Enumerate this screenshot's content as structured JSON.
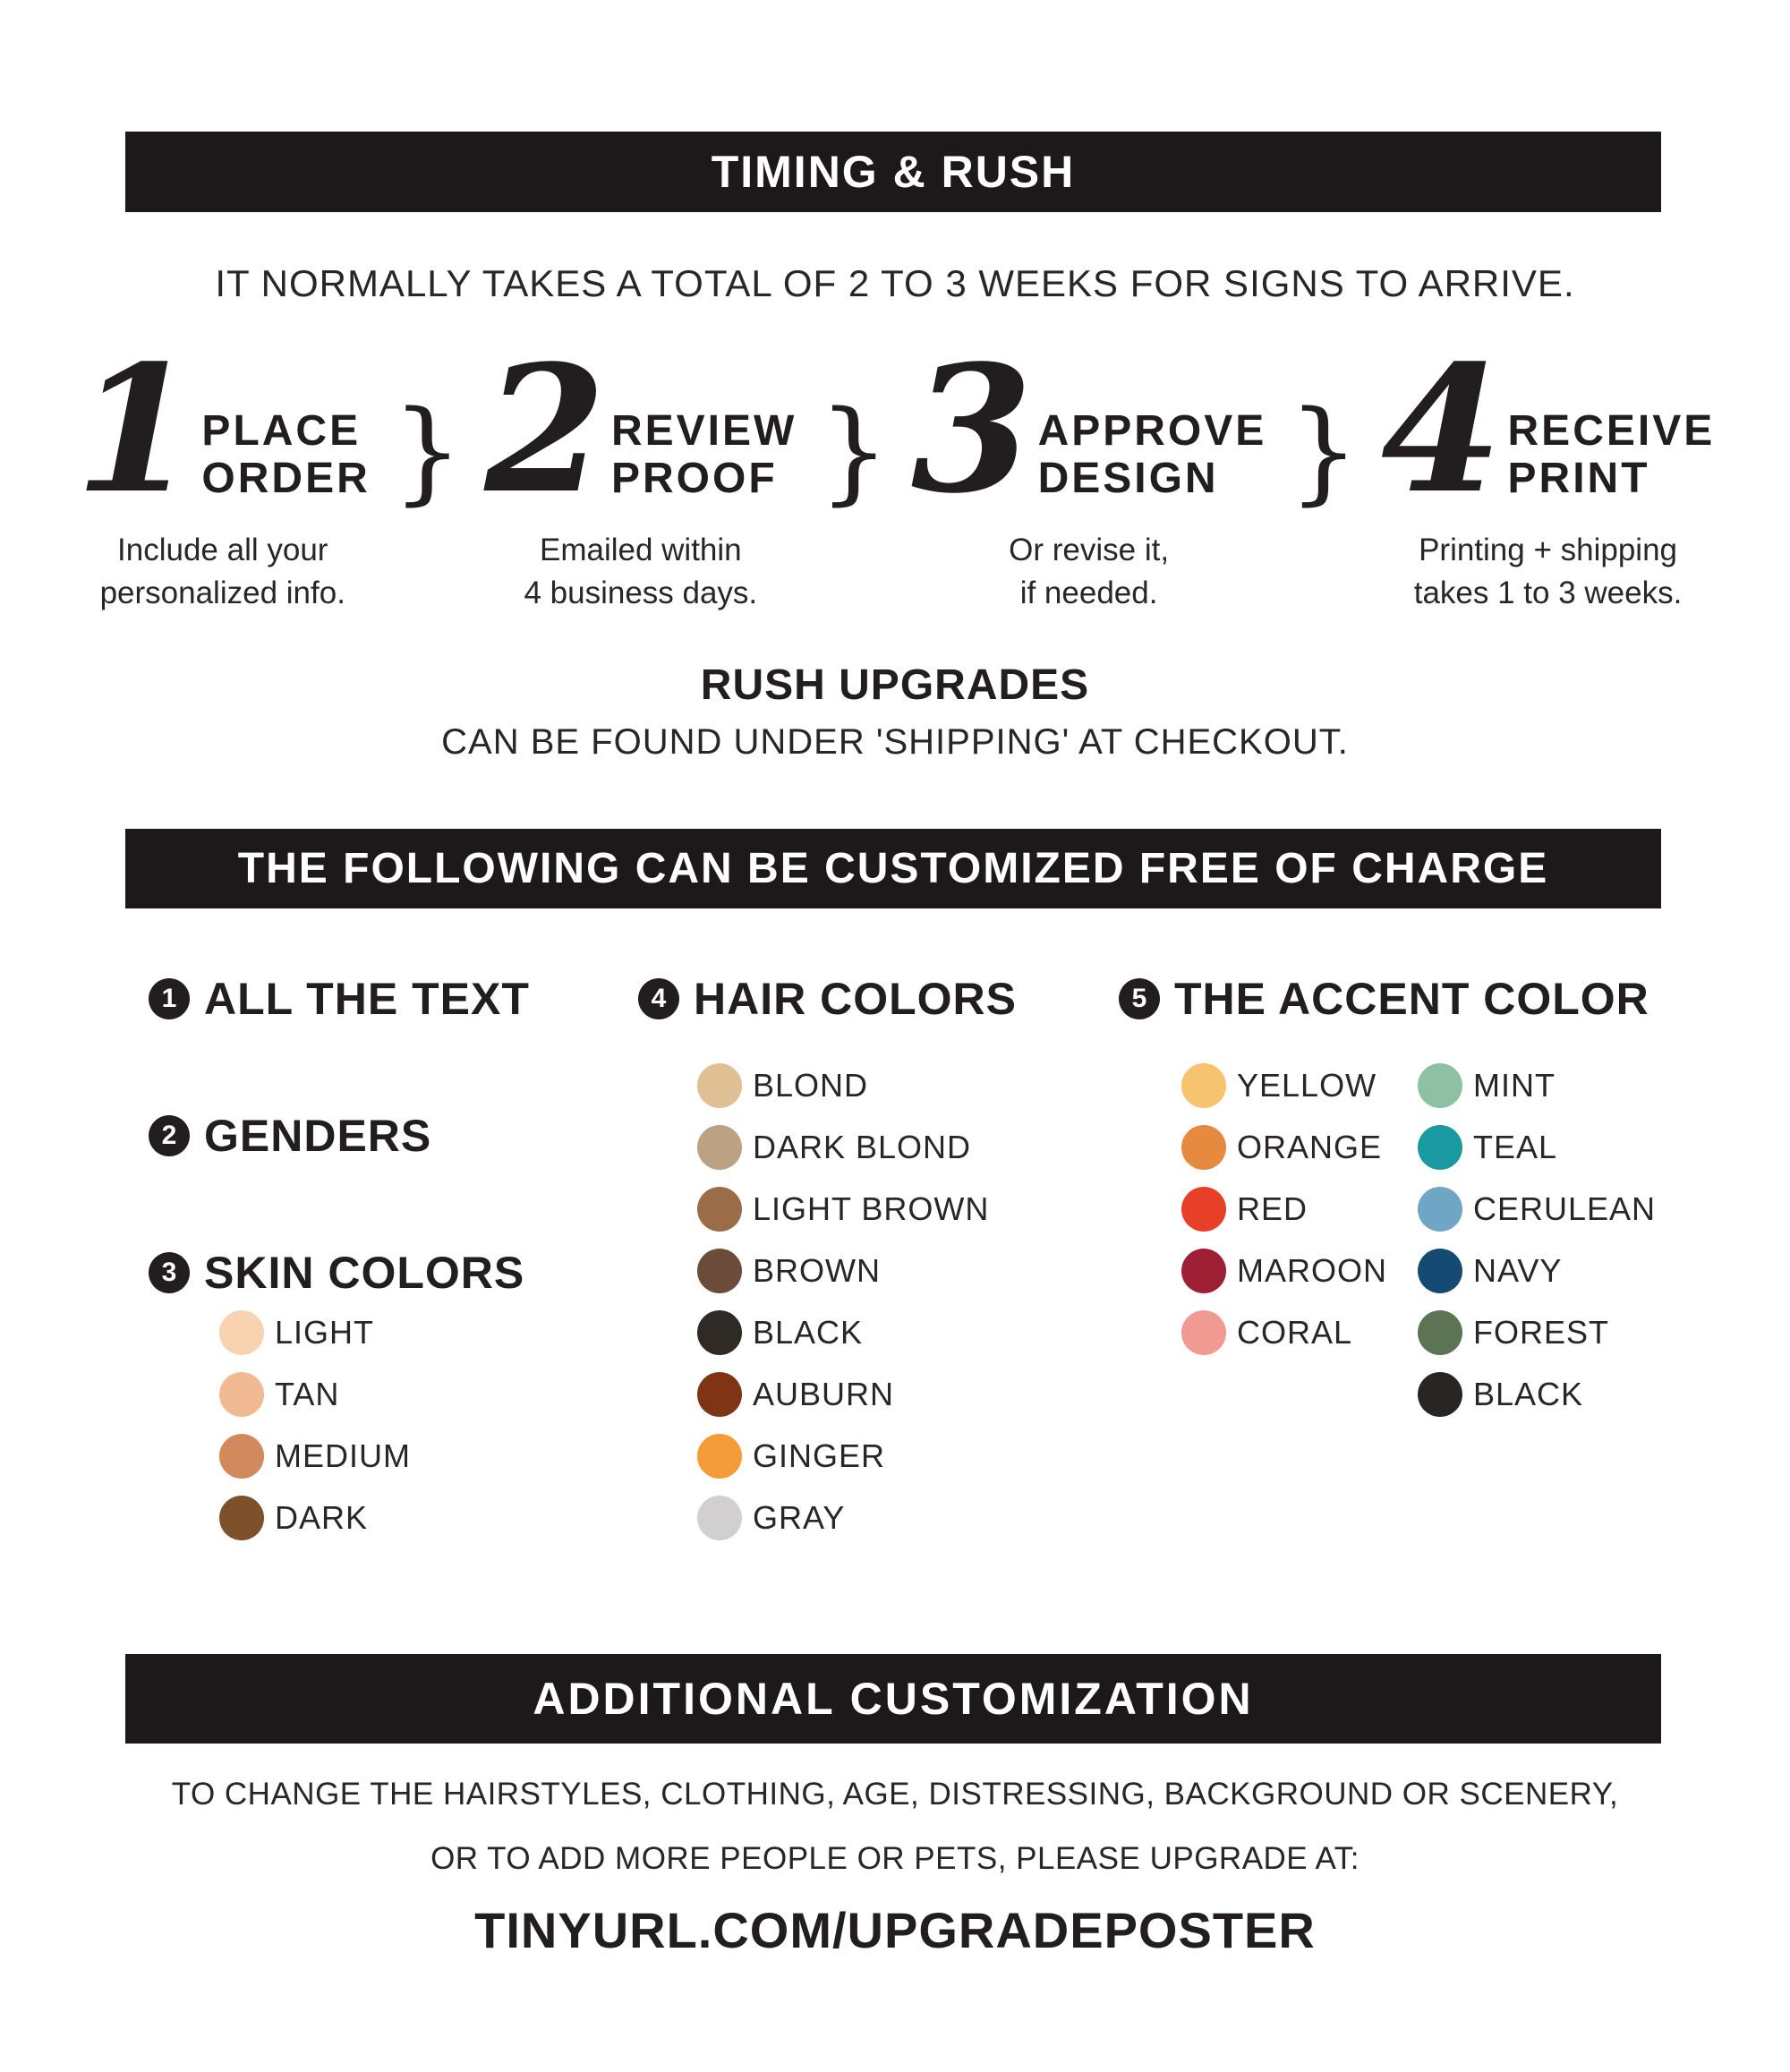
{
  "banners": {
    "timing": "TIMING & RUSH",
    "free": "THE FOLLOWING CAN BE CUSTOMIZED FREE OF CHARGE",
    "additional": "ADDITIONAL CUSTOMIZATION"
  },
  "intro": "IT NORMALLY TAKES A TOTAL OF 2 TO 3 WEEKS FOR SIGNS TO ARRIVE.",
  "steps": [
    {
      "num": "1",
      "label1": "PLACE",
      "label2": "ORDER",
      "desc1": "Include all your",
      "desc2": "personalized info."
    },
    {
      "num": "2",
      "label1": "REVIEW",
      "label2": "PROOF",
      "desc1": "Emailed within",
      "desc2": "4 business days."
    },
    {
      "num": "3",
      "label1": "APPROVE",
      "label2": "DESIGN",
      "desc1": "Or revise it,",
      "desc2": "if needed."
    },
    {
      "num": "4",
      "label1": "RECEIVE",
      "label2": "PRINT",
      "desc1": "Printing + shipping",
      "desc2": "takes 1 to 3 weeks."
    }
  ],
  "steps_brace": "}",
  "rush": {
    "title": "RUSH UPGRADES",
    "subtitle": "CAN BE FOUND UNDER 'SHIPPING' AT CHECKOUT."
  },
  "free_items": [
    {
      "num": "1",
      "label": "ALL THE TEXT"
    },
    {
      "num": "2",
      "label": "GENDERS"
    },
    {
      "num": "3",
      "label": "SKIN COLORS"
    }
  ],
  "hair": {
    "num": "4",
    "label": "HAIR COLORS"
  },
  "accent": {
    "num": "5",
    "label": "THE ACCENT COLOR"
  },
  "skin_colors": [
    {
      "label": "LIGHT",
      "hex": "#f9d2b2"
    },
    {
      "label": "TAN",
      "hex": "#f2ba92"
    },
    {
      "label": "MEDIUM",
      "hex": "#d28a5d"
    },
    {
      "label": "DARK",
      "hex": "#7d5029"
    }
  ],
  "hair_colors": [
    {
      "label": "BLOND",
      "hex": "#dfc094"
    },
    {
      "label": "DARK BLOND",
      "hex": "#bca283"
    },
    {
      "label": "LIGHT BROWN",
      "hex": "#9a6c48"
    },
    {
      "label": "BROWN",
      "hex": "#6b4c3b"
    },
    {
      "label": "BLACK",
      "hex": "#2f2a26"
    },
    {
      "label": "AUBURN",
      "hex": "#7f3415"
    },
    {
      "label": "GINGER",
      "hex": "#f49d38"
    },
    {
      "label": "GRAY",
      "hex": "#d1cfd0"
    }
  ],
  "accent_colors_col1": [
    {
      "label": "YELLOW",
      "hex": "#f6c36e"
    },
    {
      "label": "ORANGE",
      "hex": "#e58a3e"
    },
    {
      "label": "RED",
      "hex": "#e73f28"
    },
    {
      "label": "MAROON",
      "hex": "#9e1f33"
    },
    {
      "label": "CORAL",
      "hex": "#f09a92"
    }
  ],
  "accent_colors_col2": [
    {
      "label": "MINT",
      "hex": "#8ec0a2"
    },
    {
      "label": "TEAL",
      "hex": "#189aa0"
    },
    {
      "label": "CERULEAN",
      "hex": "#6fa6c6"
    },
    {
      "label": "NAVY",
      "hex": "#154b72"
    },
    {
      "label": "FOREST",
      "hex": "#5c7354"
    },
    {
      "label": "BLACK",
      "hex": "#292524"
    }
  ],
  "footer": {
    "line1": "TO CHANGE THE HAIRSTYLES, CLOTHING, AGE, DISTRESSING, BACKGROUND OR SCENERY,",
    "line2": "OR TO ADD MORE PEOPLE OR PETS, PLEASE UPGRADE AT:",
    "url": "TINYURL.COM/UPGRADEPOSTER"
  },
  "colors": {
    "ink": "#221e20",
    "banner_bg": "#1d191a",
    "paper": "#ffffff"
  }
}
